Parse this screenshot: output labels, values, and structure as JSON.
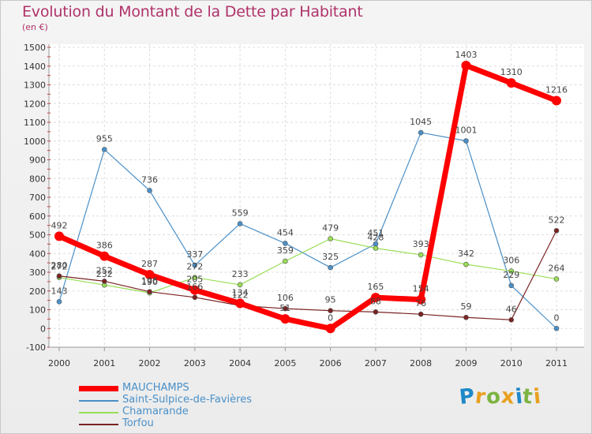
{
  "header": {
    "title": "Evolution du Montant de la Dette par Habitant",
    "unit": "(en €)"
  },
  "brand": {
    "text": "Proxiti",
    "letter_colors": [
      "#1e88c8",
      "#e8a020",
      "#7cb342",
      "#e8a020",
      "#1e88c8",
      "#7cb342",
      "#e8a020"
    ]
  },
  "chart_data": {
    "type": "line",
    "title": "Evolution du Montant de la Dette par Habitant",
    "subtitle": "(en €)",
    "x": [
      "2000",
      "2001",
      "2002",
      "2003",
      "2004",
      "2005",
      "2006",
      "2007",
      "2008",
      "2009",
      "2010",
      "2011"
    ],
    "ylim": [
      -100,
      1500
    ],
    "yticks": [
      -100,
      0,
      100,
      200,
      300,
      400,
      500,
      600,
      700,
      800,
      900,
      1000,
      1100,
      1200,
      1300,
      1400,
      1500
    ],
    "grid": true,
    "legend_position": "bottom-left",
    "series": [
      {
        "name": "MAUCHAMPS",
        "color": "#ff0000",
        "emphasis": true,
        "values": [
          492,
          386,
          287,
          205,
          134,
          51,
          0,
          165,
          154,
          1403,
          1310,
          1216
        ]
      },
      {
        "name": "Saint-Sulpice-de-Favières",
        "color": "#4a90c8",
        "emphasis": false,
        "values": [
          143,
          955,
          736,
          337,
          559,
          454,
          325,
          451,
          1045,
          1001,
          229,
          0
        ]
      },
      {
        "name": "Chamarande",
        "color": "#99dd55",
        "emphasis": false,
        "values": [
          272,
          232,
          190,
          272,
          233,
          359,
          479,
          428,
          393,
          342,
          306,
          264
        ]
      },
      {
        "name": "Torfou",
        "color": "#7a2222",
        "emphasis": false,
        "values": [
          280,
          252,
          196,
          166,
          122,
          106,
          95,
          88,
          76,
          59,
          46,
          522
        ]
      }
    ]
  }
}
